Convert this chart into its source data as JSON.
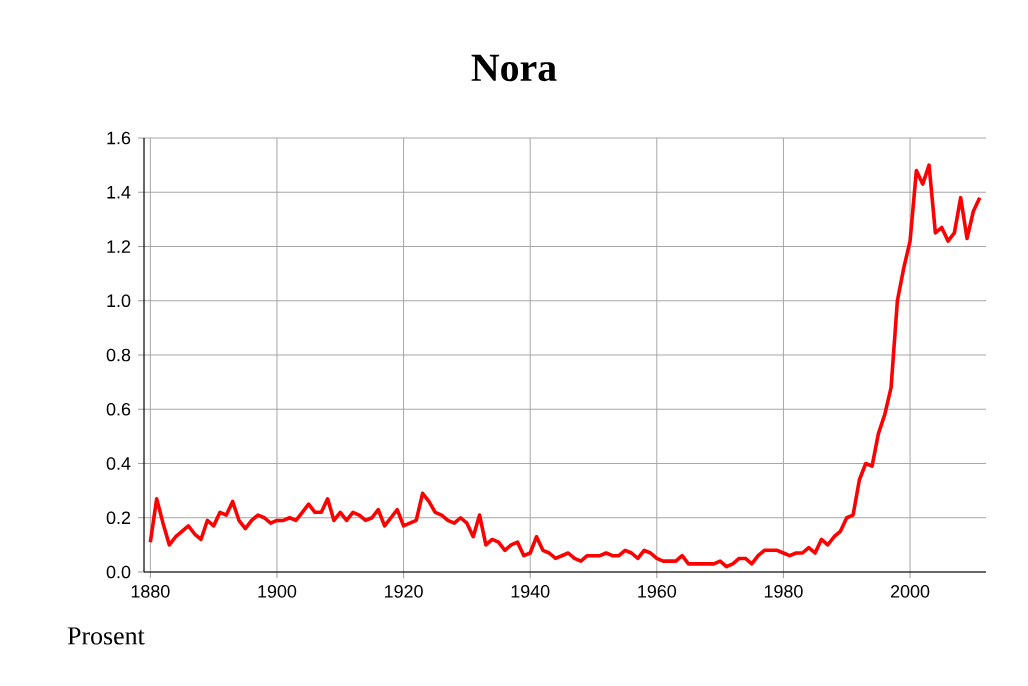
{
  "chart_data": {
    "type": "line",
    "title": "Nora",
    "annotations": [
      "Prosent"
    ],
    "x": [
      1880,
      1881,
      1882,
      1883,
      1884,
      1885,
      1886,
      1887,
      1888,
      1889,
      1890,
      1891,
      1892,
      1893,
      1894,
      1895,
      1896,
      1897,
      1898,
      1899,
      1900,
      1901,
      1902,
      1903,
      1904,
      1905,
      1906,
      1907,
      1908,
      1909,
      1910,
      1911,
      1912,
      1913,
      1914,
      1915,
      1916,
      1917,
      1918,
      1919,
      1920,
      1921,
      1922,
      1923,
      1924,
      1925,
      1926,
      1927,
      1928,
      1929,
      1930,
      1931,
      1932,
      1933,
      1934,
      1935,
      1936,
      1937,
      1938,
      1939,
      1940,
      1941,
      1942,
      1943,
      1944,
      1945,
      1946,
      1947,
      1948,
      1949,
      1950,
      1951,
      1952,
      1953,
      1954,
      1955,
      1956,
      1957,
      1958,
      1959,
      1960,
      1961,
      1962,
      1963,
      1964,
      1965,
      1966,
      1967,
      1968,
      1969,
      1970,
      1971,
      1972,
      1973,
      1974,
      1975,
      1976,
      1977,
      1978,
      1979,
      1980,
      1981,
      1982,
      1983,
      1984,
      1985,
      1986,
      1987,
      1988,
      1989,
      1990,
      1991,
      1992,
      1993,
      1994,
      1995,
      1996,
      1997,
      1998,
      1999,
      2000,
      2001,
      2002,
      2003,
      2004,
      2005,
      2006,
      2007,
      2008,
      2009,
      2010,
      2011
    ],
    "series": [
      {
        "color": "#ff0000",
        "values": [
          0.11,
          0.27,
          0.18,
          0.1,
          0.13,
          0.15,
          0.17,
          0.14,
          0.12,
          0.19,
          0.17,
          0.22,
          0.21,
          0.26,
          0.19,
          0.16,
          0.19,
          0.21,
          0.2,
          0.18,
          0.19,
          0.19,
          0.2,
          0.19,
          0.22,
          0.25,
          0.22,
          0.22,
          0.27,
          0.19,
          0.22,
          0.19,
          0.22,
          0.21,
          0.19,
          0.2,
          0.23,
          0.17,
          0.2,
          0.23,
          0.17,
          0.18,
          0.19,
          0.29,
          0.26,
          0.22,
          0.21,
          0.19,
          0.18,
          0.2,
          0.18,
          0.13,
          0.21,
          0.1,
          0.12,
          0.11,
          0.08,
          0.1,
          0.11,
          0.06,
          0.07,
          0.13,
          0.08,
          0.07,
          0.05,
          0.06,
          0.07,
          0.05,
          0.04,
          0.06,
          0.06,
          0.06,
          0.07,
          0.06,
          0.06,
          0.08,
          0.07,
          0.05,
          0.08,
          0.07,
          0.05,
          0.04,
          0.04,
          0.04,
          0.06,
          0.03,
          0.03,
          0.03,
          0.03,
          0.03,
          0.04,
          0.02,
          0.03,
          0.05,
          0.05,
          0.03,
          0.06,
          0.08,
          0.08,
          0.08,
          0.07,
          0.06,
          0.07,
          0.07,
          0.09,
          0.07,
          0.12,
          0.1,
          0.13,
          0.15,
          0.2,
          0.21,
          0.34,
          0.4,
          0.39,
          0.51,
          0.58,
          0.68,
          1.0,
          1.12,
          1.22,
          1.48,
          1.43,
          1.5,
          1.25,
          1.27,
          1.22,
          1.25,
          1.38,
          1.23,
          1.33,
          1.38
        ]
      }
    ],
    "xlim": [
      1879,
      2012
    ],
    "ylim": [
      0,
      1.6
    ],
    "xticks": [
      1880,
      1900,
      1920,
      1940,
      1960,
      1980,
      2000
    ],
    "yticks": [
      {
        "value": 0,
        "label": "0.0"
      },
      {
        "value": 0.2,
        "label": "0.2"
      },
      {
        "value": 0.4,
        "label": "0.4"
      },
      {
        "value": 0.6,
        "label": "0.6"
      },
      {
        "value": 0.8,
        "label": "0.8"
      },
      {
        "value": 1.0,
        "label": "1.0"
      },
      {
        "value": 1.2,
        "label": "1.2"
      },
      {
        "value": 1.4,
        "label": "1.4"
      },
      {
        "value": 1.6,
        "label": "1.6"
      }
    ],
    "grid": true,
    "marker": "none",
    "line_style": "solid"
  }
}
